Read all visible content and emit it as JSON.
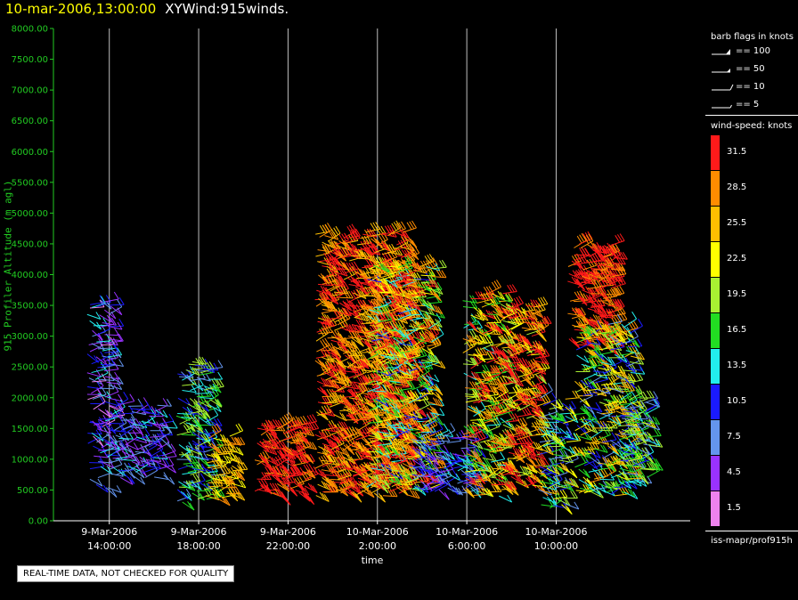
{
  "header": {
    "datetime": "10-mar-2006,13:00:00",
    "title": "XYWind:915winds."
  },
  "chart_data": {
    "type": "scatter",
    "ylabel": "915 Profiler Altitude (m agl)",
    "xlabel": "time",
    "ylim": [
      0,
      8000
    ],
    "yticks": [
      "0.00",
      "500.00",
      "1000.00",
      "1500.00",
      "2000.00",
      "2500.00",
      "3000.00",
      "3500.00",
      "4000.00",
      "4500.00",
      "5000.00",
      "5500.00",
      "6000.00",
      "6500.00",
      "7000.00",
      "7500.00",
      "8000.00"
    ],
    "xlim_hours": [
      -2.5,
      26.0
    ],
    "xticks": [
      {
        "hour": 0,
        "line1": "9-Mar-2006",
        "line2": "14:00:00"
      },
      {
        "hour": 4,
        "line1": "9-Mar-2006",
        "line2": "18:00:00"
      },
      {
        "hour": 8,
        "line1": "9-Mar-2006",
        "line2": "22:00:00"
      },
      {
        "hour": 12,
        "line1": "10-Mar-2006",
        "line2": "2:00:00"
      },
      {
        "hour": 16,
        "line1": "10-Mar-2006",
        "line2": "6:00:00"
      },
      {
        "hour": 20,
        "line1": "10-Mar-2006",
        "line2": "10:00:00"
      }
    ],
    "grid": "vertical lines at x ticks",
    "clusters": [
      {
        "t0": -1.0,
        "t1": 0.1,
        "z0": 500,
        "z1": 3600,
        "spd": [
          2,
          14
        ]
      },
      {
        "t0": 0.0,
        "t1": 2.5,
        "z0": 700,
        "z1": 1900,
        "spd": [
          3,
          13
        ]
      },
      {
        "t0": 3.0,
        "t1": 4.6,
        "z0": 300,
        "z1": 2600,
        "spd": [
          6,
          21
        ]
      },
      {
        "t0": 4.3,
        "t1": 5.6,
        "z0": 350,
        "z1": 1400,
        "spd": [
          22,
          29
        ]
      },
      {
        "t0": 6.5,
        "t1": 8.8,
        "z0": 400,
        "z1": 1600,
        "spd": [
          28,
          34
        ]
      },
      {
        "t0": 9.2,
        "t1": 13.4,
        "z0": 400,
        "z1": 4700,
        "spd": [
          24,
          34
        ]
      },
      {
        "t0": 11.5,
        "t1": 14.5,
        "z0": 500,
        "z1": 4200,
        "spd": [
          10,
          33
        ]
      },
      {
        "t0": 13.5,
        "t1": 16.5,
        "z0": 450,
        "z1": 1400,
        "spd": [
          5,
          14
        ]
      },
      {
        "t0": 15.8,
        "t1": 17.7,
        "z0": 400,
        "z1": 3700,
        "spd": [
          14,
          34
        ]
      },
      {
        "t0": 17.5,
        "t1": 19.2,
        "z0": 500,
        "z1": 3500,
        "spd": [
          20,
          34
        ]
      },
      {
        "t0": 19.2,
        "t1": 20.5,
        "z0": 200,
        "z1": 2000,
        "spd": [
          6,
          26
        ]
      },
      {
        "t0": 20.5,
        "t1": 22.6,
        "z0": 2800,
        "z1": 4500,
        "spd": [
          28,
          34
        ]
      },
      {
        "t0": 20.8,
        "t1": 23.4,
        "z0": 400,
        "z1": 3200,
        "spd": [
          8,
          28
        ]
      },
      {
        "t0": 22.8,
        "t1": 24.2,
        "z0": 600,
        "z1": 2000,
        "spd": [
          6,
          22
        ]
      }
    ]
  },
  "legend": {
    "barb_title": "barb flags in knots",
    "barbs": [
      {
        "label": "== 100"
      },
      {
        "label": "== 50"
      },
      {
        "label": "== 10"
      },
      {
        "label": "== 5"
      }
    ],
    "speed_title": "wind-speed: knots",
    "colors": [
      {
        "label": "31.5",
        "color": "#ff1a1a"
      },
      {
        "label": "28.5",
        "color": "#ff8c00"
      },
      {
        "label": "25.5",
        "color": "#ffbf00"
      },
      {
        "label": "22.5",
        "color": "#ffff00"
      },
      {
        "label": "19.5",
        "color": "#a8f032"
      },
      {
        "label": "16.5",
        "color": "#22dd22"
      },
      {
        "label": "13.5",
        "color": "#22eeee"
      },
      {
        "label": "10.5",
        "color": "#1a1aff"
      },
      {
        "label": "7.5",
        "color": "#6495ed"
      },
      {
        "label": "4.5",
        "color": "#9932ff"
      },
      {
        "label": "1.5",
        "color": "#ee82ee"
      }
    ],
    "footer": "iss-mapr/prof915h"
  },
  "notice": "REAL-TIME DATA, NOT CHECKED FOR QUALITY"
}
